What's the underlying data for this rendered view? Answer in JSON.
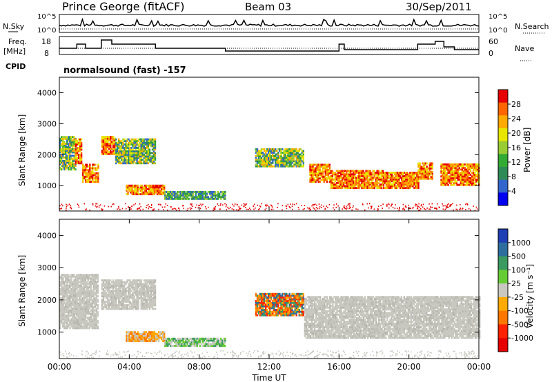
{
  "header": {
    "station": "Prince George (fitACF)",
    "beam": "Beam 03",
    "date": "30/Sep/2011"
  },
  "nsky_panel": {
    "left_label": "N.Sky",
    "right_label": "N.Search",
    "ticks_left": [
      "10^5",
      "10^0"
    ],
    "ticks_right": [
      "10^5",
      "10^0"
    ]
  },
  "freq_panel": {
    "left_label_1": "Freq.",
    "left_label_2": "[MHz]",
    "right_label": "Nave",
    "ticks_left": [
      "18",
      "8"
    ],
    "ticks_right": [
      "60",
      "0"
    ]
  },
  "cpid": {
    "label": "CPID",
    "mode": "normalsound (fast) -157"
  },
  "chart_data": [
    {
      "type": "heatmap",
      "name": "Power",
      "ylabel": "Slant Range [km]",
      "ylim": [
        180,
        4500
      ],
      "y_ticks": [
        "1000",
        "2000",
        "3000",
        "4000"
      ],
      "colorbar_label": "Power [dB]",
      "colorbar_ticks": [
        "28",
        "24",
        "20",
        "16",
        "12",
        "8",
        "4"
      ],
      "colorbar_colors": [
        "#e60000",
        "#ff6600",
        "#ffaa00",
        "#e6e600",
        "#99cc33",
        "#33aa33",
        "#2e8b57",
        "#3366cc",
        "#0000ee"
      ],
      "blocks": [
        {
          "t0": 0.0,
          "t1": 0.9,
          "r0": 1500,
          "r1": 2600,
          "level": "mid"
        },
        {
          "t0": 0.9,
          "t1": 1.3,
          "r0": 1700,
          "r1": 2500,
          "level": "high"
        },
        {
          "t0": 1.3,
          "t1": 2.2,
          "r0": 1100,
          "r1": 1700,
          "level": "high"
        },
        {
          "t0": 2.4,
          "t1": 3.2,
          "r0": 2000,
          "r1": 2600,
          "level": "high"
        },
        {
          "t0": 3.2,
          "t1": 5.5,
          "r0": 1700,
          "r1": 2500,
          "level": "mid"
        },
        {
          "t0": 3.8,
          "t1": 6.0,
          "r0": 700,
          "r1": 1000,
          "level": "high"
        },
        {
          "t0": 6.0,
          "t1": 9.5,
          "r0": 550,
          "r1": 800,
          "level": "low"
        },
        {
          "t0": 11.2,
          "t1": 14.0,
          "r0": 1600,
          "r1": 2200,
          "level": "mid"
        },
        {
          "t0": 14.3,
          "t1": 15.5,
          "r0": 1100,
          "r1": 1700,
          "level": "high"
        },
        {
          "t0": 15.5,
          "t1": 18.5,
          "r0": 900,
          "r1": 1500,
          "level": "high"
        },
        {
          "t0": 18.5,
          "t1": 20.5,
          "r0": 900,
          "r1": 1400,
          "level": "high"
        },
        {
          "t0": 20.5,
          "t1": 21.3,
          "r0": 1200,
          "r1": 1700,
          "level": "high"
        },
        {
          "t0": 21.8,
          "t1": 24.0,
          "r0": 1000,
          "r1": 1700,
          "level": "high"
        }
      ]
    },
    {
      "type": "heatmap",
      "name": "Velocity",
      "ylabel": "Slant Range [km]",
      "ylim": [
        180,
        4500
      ],
      "y_ticks": [
        "1000",
        "2000",
        "3000",
        "4000"
      ],
      "colorbar_label": "Velocity [m s⁻¹]",
      "colorbar_ticks": [
        "1000",
        "500",
        "100",
        "25",
        "-25",
        "-100",
        "-500",
        "-1000"
      ],
      "colorbar_colors": [
        "#1f3fb4",
        "#2d6e9e",
        "#3a9a60",
        "#66cc33",
        "#c8c8c0",
        "#ffaa00",
        "#ff7700",
        "#ff2200",
        "#e60000"
      ],
      "blocks": [
        {
          "t0": 0.0,
          "t1": 2.2,
          "r0": 1100,
          "r1": 2800,
          "level": "grey"
        },
        {
          "t0": 2.4,
          "t1": 5.5,
          "r0": 1700,
          "r1": 2600,
          "level": "grey"
        },
        {
          "t0": 3.8,
          "t1": 6.0,
          "r0": 700,
          "r1": 1000,
          "level": "orange"
        },
        {
          "t0": 6.0,
          "t1": 9.5,
          "r0": 550,
          "r1": 800,
          "level": "green"
        },
        {
          "t0": 11.2,
          "t1": 14.0,
          "r0": 1500,
          "r1": 2200,
          "level": "red"
        },
        {
          "t0": 14.0,
          "t1": 24.0,
          "r0": 800,
          "r1": 2100,
          "level": "grey"
        }
      ]
    }
  ],
  "x_axis": {
    "label": "Time UT",
    "ticks": [
      "00:00",
      "04:00",
      "08:00",
      "12:00",
      "16:00",
      "20:00",
      "00:00"
    ]
  }
}
